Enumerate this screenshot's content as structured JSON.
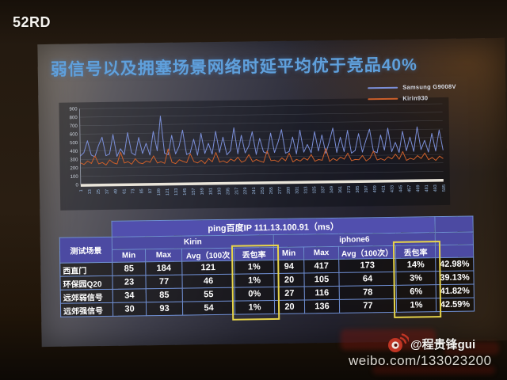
{
  "photo": {
    "watermark_top_left": "52RD",
    "weibo": {
      "handle": "@程贵锋gui",
      "url": "weibo.com/133023200"
    }
  },
  "icons": {
    "weibo": "weibo-eye-with-signal-arcs"
  },
  "colors": {
    "title_blue": "#5fa0dc",
    "samsung_line": "#7b8fd8",
    "kirin_line": "#cc5f2a",
    "table_border": "#6e8ed2",
    "header_purple": "#4c4aa2",
    "highlight_yellow": "#e6d44a"
  },
  "slide": {
    "title": "弱信号以及拥塞场景网络时延平均优于竞品40%"
  },
  "chart_data": {
    "type": "line",
    "title": "",
    "xlabel": "",
    "ylabel": "",
    "ylim": [
      0,
      900
    ],
    "xlim": [
      1,
      505
    ],
    "grid": "horizontal",
    "legend_position": "top-right",
    "y_ticks": [
      0,
      100,
      200,
      300,
      400,
      500,
      600,
      700,
      800,
      900
    ],
    "x_ticks": [
      1,
      13,
      25,
      37,
      49,
      61,
      73,
      85,
      97,
      109,
      121,
      133,
      145,
      157,
      169,
      181,
      193,
      205,
      217,
      229,
      241,
      253,
      265,
      277,
      289,
      301,
      313,
      325,
      337,
      349,
      361,
      373,
      385,
      397,
      409,
      421,
      433,
      445,
      457,
      469,
      481,
      493,
      505
    ],
    "series": [
      {
        "name": "Samsung G9008V",
        "color": "#7b8fd8",
        "values": [
          340,
          380,
          520,
          350,
          330,
          460,
          560,
          340,
          360,
          590,
          330,
          420,
          350,
          610,
          370,
          340,
          550,
          360,
          480,
          340,
          620,
          390,
          800,
          360,
          340,
          570,
          350,
          440,
          630,
          340,
          360,
          520,
          330,
          590,
          350,
          470,
          340,
          610,
          360,
          540,
          330,
          380,
          650,
          340,
          560,
          350,
          430,
          600,
          330,
          520,
          360,
          340,
          580,
          350,
          470,
          620,
          340,
          360,
          530,
          330,
          610,
          350,
          440,
          340,
          590,
          360,
          550,
          330,
          470,
          630,
          340,
          520,
          350,
          600,
          330,
          360,
          560,
          340,
          480,
          610,
          350,
          330,
          540,
          360,
          620,
          340,
          450,
          330,
          580,
          350,
          510,
          340,
          630,
          360,
          470,
          330,
          550,
          340,
          590,
          350
        ]
      },
      {
        "name": "Kirin930",
        "color": "#cc5f2a",
        "values": [
          260,
          240,
          280,
          250,
          340,
          245,
          260,
          230,
          290,
          255,
          240,
          380,
          250,
          265,
          235,
          300,
          250,
          240,
          270,
          255,
          330,
          245,
          260,
          240,
          410,
          250,
          235,
          280,
          260,
          245,
          350,
          255,
          240,
          270,
          230,
          290,
          250,
          360,
          245,
          260,
          235,
          280,
          255,
          300,
          240,
          260,
          330,
          245,
          270,
          250,
          235,
          370,
          255,
          260,
          240,
          285,
          250,
          340,
          235,
          265,
          245,
          280,
          255,
          320,
          240,
          260,
          250,
          390,
          235,
          270,
          245,
          285,
          260,
          330,
          240,
          255,
          250,
          300,
          235,
          265,
          350,
          245,
          260,
          240,
          280,
          255,
          310,
          250,
          340,
          235,
          260,
          245,
          290,
          255,
          320,
          240,
          265,
          230,
          280,
          250
        ]
      }
    ]
  },
  "table": {
    "title": "ping百度IP 111.13.100.91（ms）",
    "scenario_header": "测试场景",
    "groups": [
      "Kirin",
      "iphone6"
    ],
    "sub_headers": [
      "Min",
      "Max",
      "Avg（100次",
      "丢包率",
      "Min",
      "Max",
      "Avg（100次）",
      "丢包率"
    ],
    "rows": [
      {
        "scenario": "西直门",
        "kirin": [
          "85",
          "184",
          "121",
          "1%"
        ],
        "iphone": [
          "94",
          "417",
          "173",
          "14%"
        ],
        "gain": "42.98%"
      },
      {
        "scenario": "环保园Q20",
        "kirin": [
          "23",
          "77",
          "46",
          "1%"
        ],
        "iphone": [
          "20",
          "105",
          "64",
          "3%"
        ],
        "gain": "39.13%"
      },
      {
        "scenario": "远郊弱信号",
        "kirin": [
          "34",
          "85",
          "55",
          "0%"
        ],
        "iphone": [
          "27",
          "116",
          "78",
          "6%"
        ],
        "gain": "41.82%"
      },
      {
        "scenario": "远郊强信号",
        "kirin": [
          "30",
          "93",
          "54",
          "1%"
        ],
        "iphone": [
          "20",
          "136",
          "77",
          "1%"
        ],
        "gain": "42.59%"
      }
    ]
  }
}
